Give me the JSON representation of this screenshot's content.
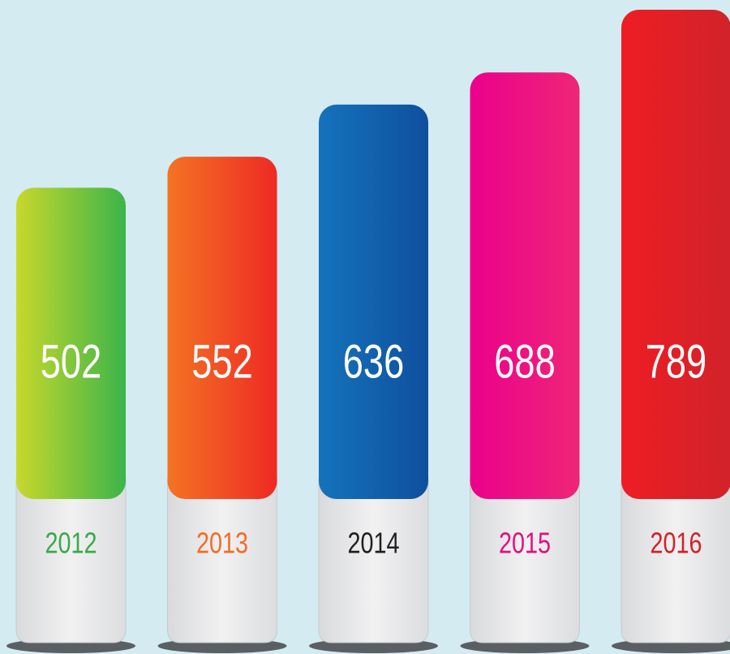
{
  "chart_data": {
    "type": "bar",
    "categories": [
      "2012",
      "2013",
      "2014",
      "2015",
      "2016"
    ],
    "values": [
      502,
      552,
      636,
      688,
      789
    ],
    "colors": [
      [
        "#c8d82c",
        "#3cb44a"
      ],
      [
        "#f47324",
        "#ee2a24"
      ],
      [
        "#1573bb",
        "#0e4f9e"
      ],
      [
        "#ec008c",
        "#ee2677"
      ],
      [
        "#ee1d24",
        "#d1222a"
      ]
    ],
    "label_colors": [
      "#3aaa48",
      "#f26d25",
      "#231f20",
      "#e0117f",
      "#d1222a"
    ]
  }
}
